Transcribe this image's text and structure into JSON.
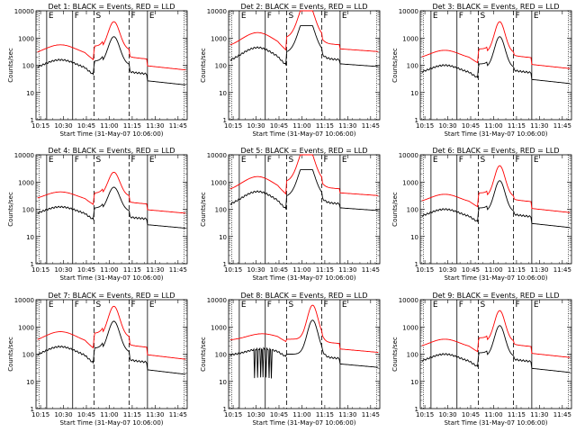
{
  "chart_data": [
    {
      "type": "line",
      "title": "Det 1: BLACK = Events, RED = LLD",
      "shape": "a",
      "level": 1.0,
      "vlines": [
        "E",
        "F",
        "S",
        "F",
        "E"
      ]
    },
    {
      "type": "line",
      "title": "Det 2: BLACK = Events, RED = LLD",
      "shape": "b",
      "level": 1.0,
      "vlines": [
        "E",
        "F",
        "S",
        "F",
        "E"
      ]
    },
    {
      "type": "line",
      "title": "Det 3: BLACK = Events, RED = LLD",
      "shape": "c",
      "level": 1.0,
      "vlines": [
        "E",
        "F",
        "S",
        "F",
        "E"
      ]
    },
    {
      "type": "line",
      "title": "Det 4: BLACK = Events, RED = LLD",
      "shape": "a",
      "level": 0.85,
      "vlines": [
        "E",
        "F",
        "S",
        "F",
        "E"
      ]
    },
    {
      "type": "line",
      "title": "Det 5: BLACK = Events, RED = LLD",
      "shape": "b",
      "level": 1.0,
      "vlines": [
        "E",
        "F",
        "S",
        "F",
        "E"
      ]
    },
    {
      "type": "line",
      "title": "Det 6: BLACK = Events, RED = LLD",
      "shape": "c",
      "level": 1.0,
      "vlines": [
        "E",
        "F",
        "S",
        "F",
        "E"
      ]
    },
    {
      "type": "line",
      "title": "Det 7: BLACK = Events, RED = LLD",
      "shape": "a",
      "level": 1.1,
      "vlines": [
        "E",
        "F",
        "S",
        "F",
        "E"
      ]
    },
    {
      "type": "line",
      "title": "Det 8: BLACK = Events, RED = LLD",
      "shape": "d",
      "level": 1.0,
      "vlines": [
        "E",
        "F",
        "S",
        "F",
        "E"
      ]
    },
    {
      "type": "line",
      "title": "Det 9: BLACK = Events, RED = LLD",
      "shape": "c",
      "level": 1.0,
      "vlines": [
        "E",
        "F",
        "S",
        "F",
        "E"
      ]
    }
  ],
  "shared": {
    "ylabel": "Counts/sec",
    "xlabel": "Start Time (31-May-07 10:06:00)",
    "xticks": [
      "10:15",
      "10:30",
      "10:45",
      "11:00",
      "11:15",
      "11:30",
      "11:45"
    ],
    "yticks": [
      "1",
      "10",
      "100",
      "1000",
      "10000"
    ],
    "ylog": true,
    "ylim": [
      1,
      10000
    ],
    "events_color": "#000000",
    "lld_color": "#ff0000"
  }
}
